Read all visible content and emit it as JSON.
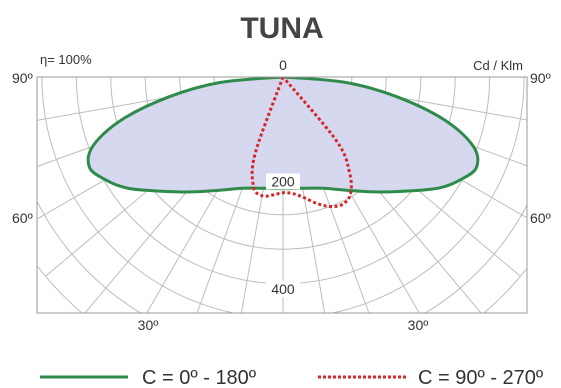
{
  "chart_data": {
    "type": "polar",
    "title": "TUNA",
    "efficiency_label": "η= 100%",
    "unit_label": "Cd / Klm",
    "angle_labels": {
      "top": "0",
      "left_upper": "90º",
      "right_upper": "90º",
      "left_mid": "60º",
      "right_mid": "60º",
      "bottom_left": "30º",
      "bottom_right": "30º"
    },
    "radial_tick_labels": [
      "200",
      "400"
    ],
    "r_max": 450,
    "series": [
      {
        "name": "C = 0º - 180º",
        "color": "#2e8b4a",
        "style": "solid",
        "filled": true,
        "fill_color": "#d4d6ee",
        "angles_deg": [
          0,
          10,
          20,
          30,
          40,
          50,
          55,
          60,
          65,
          70,
          75,
          80,
          85,
          90
        ],
        "values": [
          162,
          164,
          172,
          190,
          218,
          256,
          280,
          298,
          310,
          294,
          244,
          170,
          92,
          0
        ]
      },
      {
        "name": "C = 90º - 270º",
        "color": "#d6262a",
        "style": "dotted",
        "filled": false,
        "angles_deg": [
          -25,
          -20,
          -15,
          -10,
          -5,
          0,
          5,
          10,
          15,
          20,
          25,
          30,
          35,
          40,
          45
        ],
        "values": [
          0,
          118,
          165,
          175,
          172,
          168,
          170,
          178,
          190,
          200,
          204,
          196,
          168,
          120,
          0
        ]
      }
    ],
    "legend": [
      {
        "label": "C = 0º - 180º",
        "color": "#2e8b4a",
        "style": "solid"
      },
      {
        "label": "C = 90º - 270º",
        "color": "#d6262a",
        "style": "dotted"
      }
    ]
  }
}
